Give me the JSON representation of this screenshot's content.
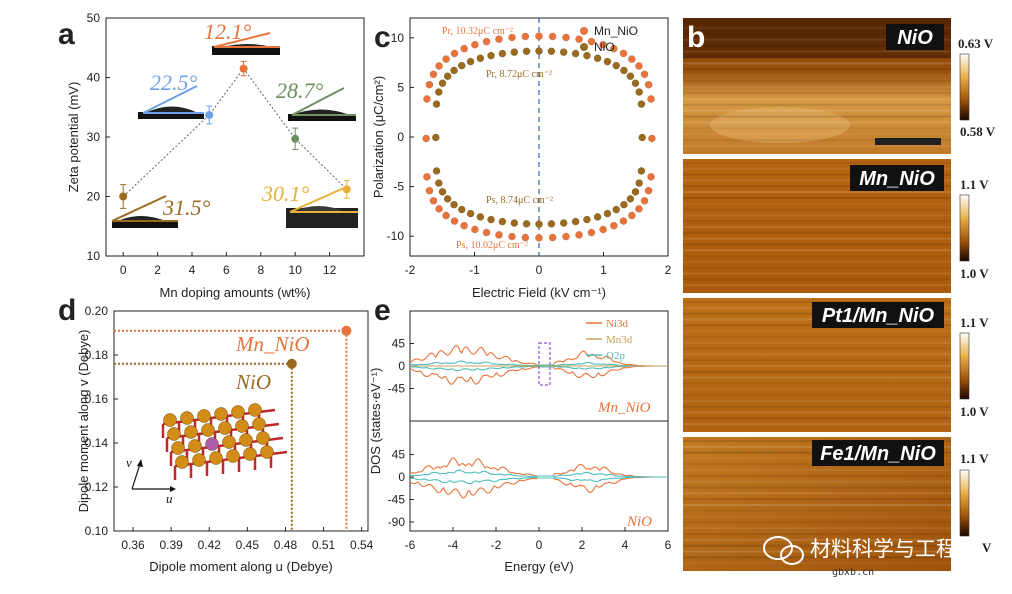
{
  "colors": {
    "orange": "#e8743c",
    "brown": "#9a6a1f",
    "blue": "#6f9fe6",
    "green": "#6e8f5e",
    "gold": "#e8b13a",
    "teal": "#4fbdbd",
    "purple": "#8b55d6",
    "afm_bg": "#b86a10"
  },
  "panel_labels": {
    "a": "a",
    "b": "b",
    "c": "c",
    "d": "d",
    "e": "e"
  },
  "chart_data": [
    {
      "panel": "a",
      "type": "scatter",
      "xlabel": "Mn doping amounts (wt%)",
      "ylabel": "Zeta potential (mV)",
      "xlim": [
        -1,
        14
      ],
      "ylim": [
        10,
        50
      ],
      "xticks": [
        0,
        2,
        4,
        6,
        8,
        10,
        12
      ],
      "yticks": [
        10,
        20,
        30,
        40,
        50
      ],
      "x": [
        0,
        5,
        7,
        10,
        13
      ],
      "values": [
        20,
        33.7,
        41.5,
        29.7,
        21.2
      ],
      "errors": [
        2,
        1.5,
        1.2,
        1.8,
        1.5
      ],
      "point_colors": [
        "#9a6a1f",
        "#6f9fe6",
        "#e8743c",
        "#6e8f5e",
        "#e8b13a"
      ],
      "contact_angles": [
        {
          "label": "31.5°",
          "color": "#9a6a1f"
        },
        {
          "label": "22.5°",
          "color": "#6f9fe6"
        },
        {
          "label": "12.1°",
          "color": "#e8743c"
        },
        {
          "label": "28.7°",
          "color": "#6e8f5e"
        },
        {
          "label": "30.1°",
          "color": "#e8b13a"
        }
      ]
    },
    {
      "panel": "c",
      "type": "scatter",
      "xlabel": "Electric Field (kV cm⁻¹)",
      "ylabel": "Polarization (μC/cm²)",
      "xlim": [
        -2,
        2
      ],
      "ylim": [
        -12,
        12
      ],
      "xticks": [
        -2,
        -1,
        0,
        1,
        2
      ],
      "yticks": [
        -10,
        -5,
        0,
        5,
        10
      ],
      "legend_position": "top-right",
      "series": [
        {
          "name": "Mn_NiO",
          "color": "#e8743c",
          "pr": 10.32,
          "ps": -10.02,
          "e_half_width": 1.75
        },
        {
          "name": "NiO",
          "color": "#9a6a1f",
          "pr": 8.72,
          "ps": -8.74,
          "e_half_width": 1.6
        }
      ],
      "annotations": {
        "pr_mn": "Pr, 10.32μC cm⁻²",
        "pr_nio": "Pr, 8.72μC cm⁻²",
        "ps_nio": "Ps, 8.74μC cm⁻²",
        "ps_mn": "Ps, 10.02μC cm⁻²"
      }
    },
    {
      "panel": "d",
      "type": "scatter",
      "xlabel": "Dipole moment along u (Debye)",
      "ylabel": "Dipole moment along v (Debye)",
      "xlim": [
        0.345,
        0.545
      ],
      "ylim": [
        0.1,
        0.2
      ],
      "xticks": [
        "0.36",
        "0.39",
        "0.42",
        "0.45",
        "0.48",
        "0.51",
        "0.54"
      ],
      "yticks": [
        "0.10",
        "0.12",
        "0.14",
        "0.16",
        "0.18",
        "0.20"
      ],
      "points": [
        {
          "name": "Mn_NiO",
          "x": 0.528,
          "y": 0.191,
          "color": "#e8743c"
        },
        {
          "name": "NiO",
          "x": 0.485,
          "y": 0.176,
          "color": "#9a6a1f"
        }
      ],
      "axis_u": "u",
      "axis_v": "v"
    },
    {
      "panel": "e",
      "type": "line",
      "xlabel": "Energy (eV)",
      "ylabel": "DOS (states·eV⁻¹)",
      "xlim": [
        -6,
        6
      ],
      "xticks": [
        -6,
        -4,
        -2,
        0,
        2,
        4,
        6
      ],
      "top_yticks": [
        45,
        0,
        -45
      ],
      "bottom_yticks": [
        45,
        0,
        -45,
        -90
      ],
      "legend": [
        "Ni3d",
        "Mn3d",
        "O2p"
      ],
      "legend_colors": [
        "#e8743c",
        "#c9a15a",
        "#4fbdbd"
      ],
      "top_label": "Mn_NiO",
      "bottom_label": "NiO"
    }
  ],
  "afm": [
    {
      "label": "NiO",
      "cb_max": "0.63 V",
      "cb_min": "0.58 V"
    },
    {
      "label": "Mn_NiO",
      "cb_max": "1.1 V",
      "cb_min": "1.0 V"
    },
    {
      "label": "Pt1/Mn_NiO",
      "cb_max": "1.1 V",
      "cb_min": "1.0 V"
    },
    {
      "label": "Fe1/Mn_NiO",
      "cb_max": "1.1 V",
      "cb_min": "V"
    }
  ],
  "watermark": {
    "text": "材料科学与工程",
    "url": "gbxb.cn"
  }
}
